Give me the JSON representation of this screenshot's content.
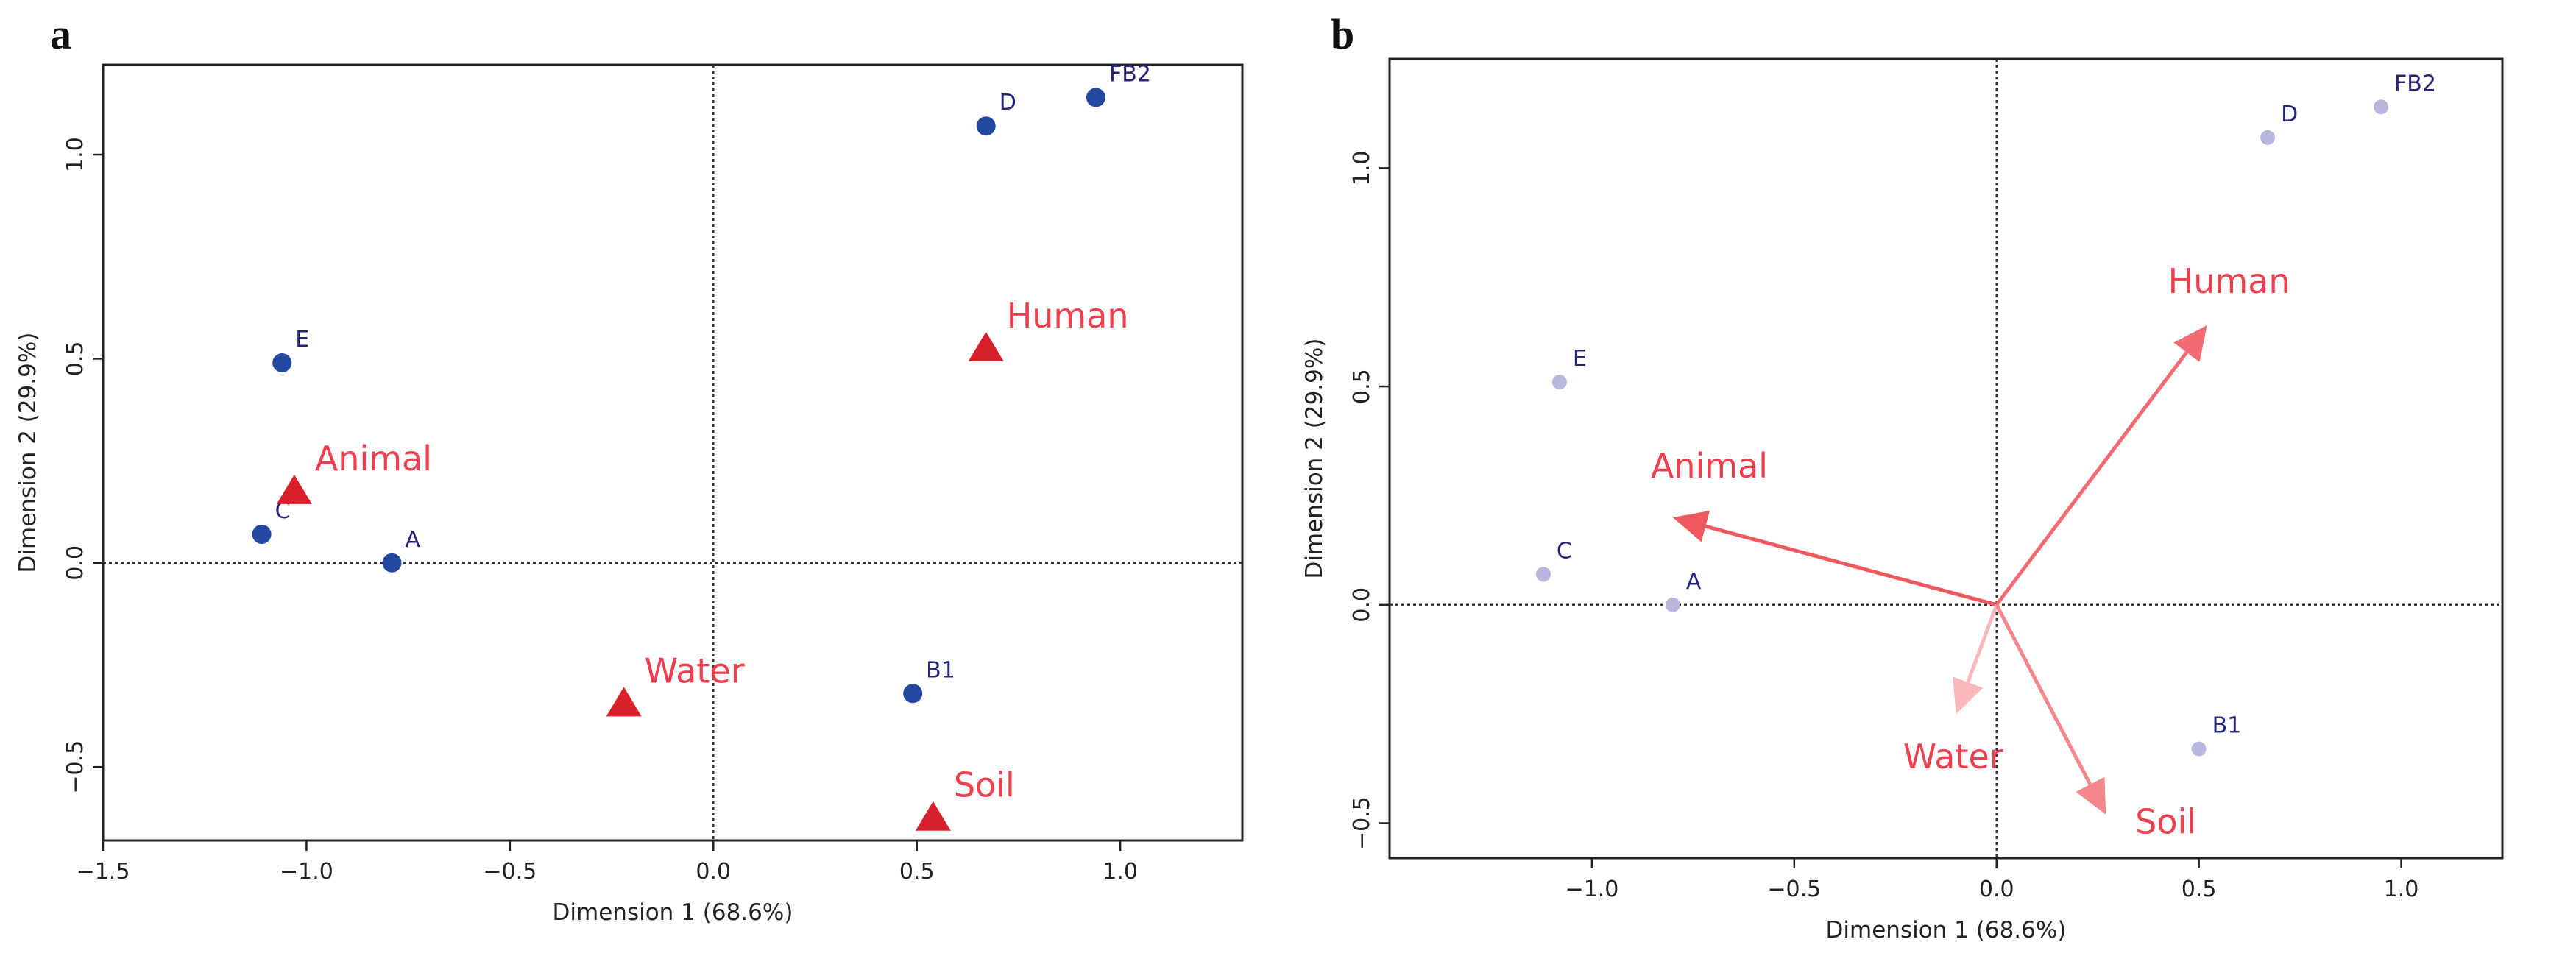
{
  "panels": [
    {
      "letter": "a",
      "type": "scatter",
      "xlabel": "Dimension 1 (68.6%)",
      "ylabel": "Dimension 2 (29.9%)",
      "xlim": [
        -1.5,
        1.3
      ],
      "ylim": [
        -0.68,
        1.22
      ],
      "xticks": [
        {
          "v": -1.5,
          "label": "−1.5"
        },
        {
          "v": -1.0,
          "label": "−1.0"
        },
        {
          "v": -0.5,
          "label": "−0.5"
        },
        {
          "v": 0.0,
          "label": "0.0"
        },
        {
          "v": 0.5,
          "label": "0.5"
        },
        {
          "v": 1.0,
          "label": "1.0"
        }
      ],
      "yticks": [
        {
          "v": -0.5,
          "label": "−0.5"
        },
        {
          "v": 0.0,
          "label": "0.0"
        },
        {
          "v": 0.5,
          "label": "0.5"
        },
        {
          "v": 1.0,
          "label": "1.0"
        }
      ],
      "points": [
        {
          "label": "D",
          "x": 0.67,
          "y": 1.07
        },
        {
          "label": "FB2",
          "x": 0.94,
          "y": 1.14
        },
        {
          "label": "E",
          "x": -1.06,
          "y": 0.49
        },
        {
          "label": "C",
          "x": -1.11,
          "y": 0.07
        },
        {
          "label": "A",
          "x": -0.79,
          "y": 0.0
        },
        {
          "label": "B1",
          "x": 0.49,
          "y": -0.32
        }
      ],
      "sources": [
        {
          "label": "Human",
          "x": 0.67,
          "y": 0.53
        },
        {
          "label": "Animal",
          "x": -1.03,
          "y": 0.18
        },
        {
          "label": "Water",
          "x": -0.22,
          "y": -0.34
        },
        {
          "label": "Soil",
          "x": 0.54,
          "y": -0.62
        }
      ],
      "colors": {
        "point": "#2447a0",
        "source": "#d7202a",
        "label": "#f03e4e",
        "point_label": "#24247a"
      }
    },
    {
      "letter": "b",
      "type": "biplot",
      "xlabel": "Dimension 1 (68.6%)",
      "ylabel": "Dimension 2 (29.9%)",
      "xlim": [
        -1.5,
        1.25
      ],
      "ylim": [
        -0.58,
        1.25
      ],
      "xticks": [
        {
          "v": -1.0,
          "label": "−1.0"
        },
        {
          "v": -0.5,
          "label": "−0.5"
        },
        {
          "v": 0.0,
          "label": "0.0"
        },
        {
          "v": 0.5,
          "label": "0.5"
        },
        {
          "v": 1.0,
          "label": "1.0"
        }
      ],
      "yticks": [
        {
          "v": -0.5,
          "label": "−0.5"
        },
        {
          "v": 0.0,
          "label": "0.0"
        },
        {
          "v": 0.5,
          "label": "0.5"
        },
        {
          "v": 1.0,
          "label": "1.0"
        }
      ],
      "points": [
        {
          "label": "D",
          "x": 0.67,
          "y": 1.07
        },
        {
          "label": "FB2",
          "x": 0.95,
          "y": 1.14
        },
        {
          "label": "E",
          "x": -1.08,
          "y": 0.51
        },
        {
          "label": "C",
          "x": -1.12,
          "y": 0.07
        },
        {
          "label": "A",
          "x": -0.8,
          "y": 0.0
        },
        {
          "label": "B1",
          "x": 0.5,
          "y": -0.33
        }
      ],
      "arrows": [
        {
          "label": "Human",
          "x": 0.52,
          "y": 0.64,
          "color": "#f26b72"
        },
        {
          "label": "Animal",
          "x": -0.8,
          "y": 0.2,
          "color": "#f0585f"
        },
        {
          "label": "Water",
          "x": -0.1,
          "y": -0.25,
          "color": "#f8b8bc"
        },
        {
          "label": "Soil",
          "x": 0.27,
          "y": -0.48,
          "color": "#f5868c"
        }
      ],
      "colors": {
        "point": "#b8b8de",
        "label": "#f03e4e",
        "point_label": "#24247a"
      }
    }
  ]
}
